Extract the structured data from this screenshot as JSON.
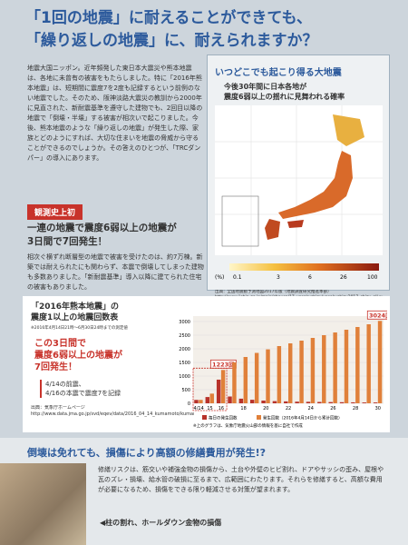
{
  "header": {
    "title_lines": [
      "「1回の地震」に耐えることができても、",
      "「繰り返しの地震」に、耐えられますか？"
    ]
  },
  "intro": "地震大国ニッポン。近年頻発した東日本大震災や熊本地震は、各地に未曾有の被害をもたらしました。特に「2016年熊本地震」は、短期間に震度7を2度も記録するという前例のない地震でした。そのため、阪神淡路大震災の教訓から2000年に見直された、新耐震基準を遵守した建物でも、2回目以降の地震で「倒壊・半壊」する被害が相次いで起こりました。今後、熊本地震のような「繰り返しの地震」が発生した際、家族とどのようにすれば、大切な住まいを地震の脅威から守ることができるのでしょうか。その答えのひとつが、「TRCダンパー」の導入にあります。",
  "map": {
    "title": "いつどこでも起こり得る大地震",
    "subtitle_lines": [
      "今後30年間に日本各地が",
      "震度6弱以上の揺れに見舞われる確率"
    ],
    "legend_unit": "(%)",
    "legend_ticks": [
      "0.1",
      "3",
      "6",
      "26",
      "100"
    ],
    "source": "出典：全国地震動予測地図2017年版（地震調査研究推進本部）",
    "url": "http://www.jishin.go.jp/main/chousa/17_yosokuchizu/yosokuchizu2017_chizu_all.pdf"
  },
  "badge": "観測史上初",
  "highlight": {
    "heading_lines": [
      "一連の地震で震度6弱以上の地震が",
      "3日間で7回発生！"
    ],
    "body": "相次ぐ横ずれ断層型の地震で被害を受けたのは、約7万棟。新築では耐えられたにも関わらず、本震で倒壊してしまった建物も多数ありました。「新耐震基準」導入以降に建てられた住宅の被害もありました。"
  },
  "chart_panel": {
    "title_lines": [
      "「2016年熊本地震」の",
      "震度1以上の地震回数表"
    ],
    "note": "※2016年4月14日21時〜6月30日24時までの測定値",
    "callout_lines": [
      "この3日間で",
      "震度6弱以上の地震が",
      "7回発生！"
    ],
    "record_lines": [
      "4/14の前震、",
      "4/16の本震で震度7を記録"
    ],
    "source": "出典：気象庁ホームページ",
    "url": "http://www.data.jma.go.jp/svd/eqev/data/2016_04_14_kumamoto/kumamoto_over1.pdf",
    "footnote": "※上のグラフは、気象庁地震火山部の情報を基に自社で作成"
  },
  "chart_data": {
    "type": "bar",
    "categories": [
      "4/14",
      "15",
      "16",
      null,
      "18",
      null,
      "20",
      null,
      "22",
      null,
      "24",
      null,
      "26",
      null,
      "28",
      null,
      "30"
    ],
    "series": [
      {
        "name": "毎日の発生回数",
        "color": "#b8322a",
        "values": [
          125,
          230,
          868,
          250,
          170,
          130,
          100,
          80,
          70,
          60,
          55,
          50,
          45,
          40,
          35,
          30,
          30
        ]
      },
      {
        "name": "発生回数（2016年4月14日から累計回数）",
        "color": "#e0803a",
        "values": [
          125,
          355,
          1223,
          1500,
          1700,
          1850,
          1980,
          2100,
          2200,
          2300,
          2400,
          2500,
          2600,
          2700,
          2800,
          2900,
          3024
        ],
        "value_labels": [
          null,
          null,
          "1223回",
          null,
          null,
          null,
          null,
          null,
          null,
          null,
          null,
          null,
          null,
          null,
          null,
          null,
          "3024回"
        ]
      }
    ],
    "ylim": [
      0,
      3200
    ],
    "yticks": [
      0,
      500,
      1000,
      1500,
      2000,
      2500,
      3000
    ],
    "grid": true
  },
  "bottom": {
    "heading": "倒壊は免れても、損傷により高額の修繕費用が発生!?",
    "body": "修繕リスクは、筋交いや補強金物の損傷から、土台や外壁のヒビ割れ、ドアやサッシの歪み、屋根や瓦のズレ・損壊、給水管の破損に至るまで、広範囲にわたります。それらを修繕すると、高額な費用が必要になるため、損傷をできる限り軽減させる対策が望まれます。",
    "caption": "◀柱の割れ、ホールダウン金物の損傷"
  }
}
